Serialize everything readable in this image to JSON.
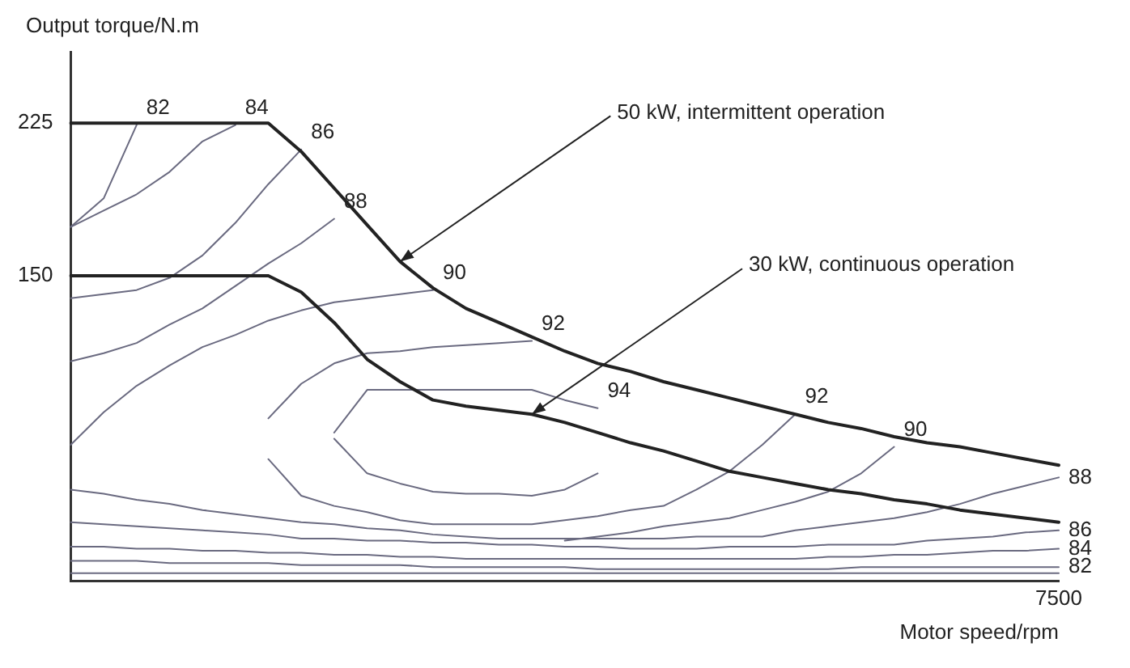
{
  "chart_data": {
    "type": "line",
    "xlabel": "Motor speed/rpm",
    "ylabel": "Output torque/N.m",
    "categories": [
      null,
      null,
      null,
      null,
      null,
      null,
      null,
      null,
      null,
      null,
      null,
      null,
      null,
      null,
      null,
      null,
      null,
      null,
      null,
      null,
      null,
      null,
      null,
      null,
      null,
      null,
      null,
      null,
      null,
      null,
      "7500"
    ],
    "ylim": [
      0,
      260
    ],
    "yticks": [
      150,
      225
    ],
    "grid": false,
    "legend": false,
    "marker": "none",
    "series": [
      {
        "name": "50 kW, intermittent operation",
        "color": "#222222",
        "values": [
          225,
          225,
          225,
          225,
          225,
          225,
          225,
          211,
          193,
          175,
          157,
          144,
          134,
          127,
          120,
          113,
          107,
          103,
          98,
          94,
          90,
          86,
          82,
          78,
          75,
          71,
          68,
          66,
          63,
          60,
          57
        ]
      },
      {
        "name": "30 kW, continuous operation",
        "color": "#222222",
        "values": [
          150,
          150,
          150,
          150,
          150,
          150,
          150,
          142,
          127,
          109,
          98,
          89,
          86,
          84,
          82,
          78,
          73,
          68,
          64,
          59,
          54,
          51,
          48,
          45,
          43,
          40,
          38,
          35,
          33,
          31,
          29
        ]
      },
      {
        "name": "82",
        "color": "#6a6a80",
        "values": [
          174,
          188,
          224,
          null,
          null,
          null,
          null,
          null,
          null,
          null,
          null,
          null,
          null,
          null,
          null,
          null,
          null,
          null,
          null,
          null,
          null,
          null,
          null,
          null,
          null,
          null,
          null,
          null,
          null,
          null,
          null
        ]
      },
      {
        "name": "84",
        "color": "#6a6a80",
        "values": [
          174,
          182,
          190,
          201,
          216,
          224,
          null,
          null,
          null,
          null,
          null,
          null,
          null,
          null,
          null,
          null,
          null,
          null,
          null,
          null,
          null,
          null,
          null,
          null,
          null,
          null,
          null,
          null,
          null,
          null,
          null
        ]
      },
      {
        "name": "86",
        "color": "#6a6a80",
        "values": [
          139,
          141,
          143,
          149,
          160,
          176,
          195,
          212,
          null,
          null,
          null,
          null,
          null,
          null,
          null,
          null,
          null,
          null,
          null,
          null,
          null,
          null,
          null,
          null,
          null,
          null,
          null,
          null,
          null,
          null,
          null
        ]
      },
      {
        "name": "88",
        "color": "#6a6a80",
        "values": [
          108,
          112,
          117,
          126,
          134,
          145,
          156,
          166,
          178,
          null,
          null,
          null,
          null,
          null,
          null,
          null,
          null,
          null,
          null,
          null,
          null,
          null,
          null,
          null,
          null,
          null,
          null,
          null,
          null,
          null,
          null
        ]
      },
      {
        "name": "90",
        "color": "#6a6a80",
        "values": [
          67,
          83,
          96,
          106,
          115,
          121,
          128,
          133,
          137,
          139,
          141,
          143,
          null,
          null,
          null,
          null,
          null,
          null,
          null,
          null,
          null,
          null,
          null,
          null,
          null,
          null,
          null,
          null,
          null,
          null,
          null
        ]
      },
      {
        "name": "92",
        "color": "#6a6a80",
        "values": [
          null,
          null,
          null,
          null,
          null,
          null,
          80,
          97,
          107,
          112,
          113,
          115,
          116,
          117,
          118,
          null,
          null,
          null,
          null,
          null,
          null,
          null,
          null,
          null,
          null,
          null,
          null,
          null,
          null,
          null,
          null
        ]
      },
      {
        "name": "92",
        "color": "#6a6a80",
        "values": [
          null,
          null,
          null,
          null,
          null,
          null,
          60,
          42,
          37,
          34,
          30,
          28,
          28,
          28,
          28,
          30,
          32,
          35,
          37,
          45,
          54,
          67,
          82,
          null,
          null,
          null,
          null,
          null,
          null,
          null,
          null
        ]
      },
      {
        "name": "94",
        "color": "#6a6a80",
        "values": [
          null,
          null,
          null,
          null,
          null,
          null,
          null,
          null,
          73,
          94,
          94,
          94,
          94,
          94,
          94,
          89,
          85,
          null,
          null,
          null,
          null,
          null,
          null,
          null,
          null,
          null,
          null,
          null,
          null,
          null,
          null
        ]
      },
      {
        "color": "#6a6a80",
        "values": [
          null,
          null,
          null,
          null,
          null,
          null,
          null,
          null,
          70,
          53,
          48,
          44,
          43,
          43,
          42,
          45,
          53,
          null,
          null,
          null,
          null,
          null,
          null,
          null,
          null,
          null,
          null,
          null,
          null,
          null,
          null
        ]
      },
      {
        "name": "90",
        "color": "#6a6a80",
        "values": [
          null,
          null,
          null,
          null,
          null,
          null,
          null,
          null,
          null,
          null,
          null,
          null,
          null,
          null,
          null,
          20,
          22,
          24,
          27,
          29,
          31,
          35,
          39,
          44,
          53,
          66,
          null,
          null,
          null,
          null,
          null
        ]
      },
      {
        "name": "88",
        "color": "#6a6a80",
        "values": [
          45,
          43,
          40,
          38,
          35,
          33,
          31,
          29,
          28,
          26,
          25,
          23,
          22,
          21,
          21,
          21,
          21,
          21,
          21,
          22,
          22,
          22,
          25,
          27,
          29,
          31,
          34,
          38,
          43,
          47,
          51
        ]
      },
      {
        "name": "86",
        "color": "#6a6a80",
        "values": [
          29,
          28,
          27,
          26,
          25,
          24,
          23,
          21,
          21,
          20,
          20,
          19,
          19,
          18,
          18,
          17,
          17,
          16,
          16,
          16,
          17,
          17,
          17,
          18,
          18,
          18,
          20,
          21,
          22,
          24,
          25
        ]
      },
      {
        "name": "84",
        "color": "#6a6a80",
        "values": [
          17,
          17,
          16,
          16,
          15,
          15,
          14,
          14,
          13,
          13,
          12,
          12,
          11,
          11,
          11,
          11,
          11,
          11,
          11,
          11,
          11,
          11,
          11,
          12,
          12,
          13,
          13,
          14,
          15,
          15,
          16
        ]
      },
      {
        "name": "82",
        "color": "#6a6a80",
        "values": [
          10,
          10,
          10,
          9,
          9,
          9,
          9,
          8,
          8,
          8,
          8,
          7,
          7,
          7,
          7,
          7,
          6,
          6,
          6,
          6,
          6,
          6,
          6,
          6,
          7,
          7,
          7,
          7,
          7,
          7,
          7
        ]
      },
      {
        "color": "#6a6a80",
        "values": [
          4,
          4,
          4,
          4,
          4,
          4,
          4,
          4,
          4,
          4,
          4,
          4,
          4,
          4,
          4,
          4,
          4,
          4,
          4,
          4,
          4,
          4,
          4,
          4,
          4,
          4,
          4,
          4,
          4,
          4,
          4
        ]
      }
    ]
  }
}
